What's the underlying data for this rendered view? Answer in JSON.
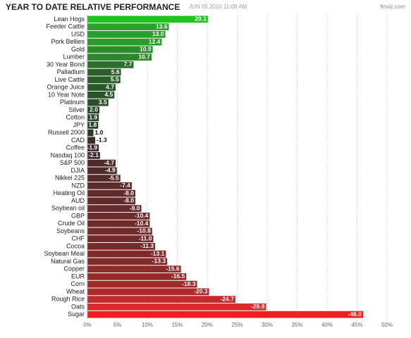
{
  "chart_data": {
    "type": "bar",
    "title": "YEAR TO DATE RELATIVE PERFORMANCE",
    "subtitle": "JUN 05 2010 11:08 AM",
    "source": "finviz.com",
    "categories": [
      "Lean Hogs",
      "Feeder Cattle",
      "USD",
      "Pork Bellies",
      "Gold",
      "Lumber",
      "30 Year Bond",
      "Palladium",
      "Live Cattle",
      "Orange Juice",
      "10 Year Note",
      "Platinum",
      "Silver",
      "Cotton",
      "JPY",
      "Russell 2000",
      "CAD",
      "Coffee",
      "Nasdaq 100",
      "S&P 500",
      "DJIA",
      "Nikkei 225",
      "NZD",
      "Heating Oil",
      "AUD",
      "Soybean oil",
      "GBP",
      "Crude Oil",
      "Soybeans",
      "CHF",
      "Cocoa",
      "Soybean Meal",
      "Natural Gas",
      "Copper",
      "EUR",
      "Corn",
      "Wheat",
      "Rough Rice",
      "Oats",
      "Sugar"
    ],
    "values": [
      20.1,
      13.6,
      13.0,
      12.4,
      10.9,
      10.7,
      7.7,
      5.6,
      5.5,
      4.7,
      4.5,
      3.5,
      2.0,
      1.9,
      1.8,
      1.0,
      -1.3,
      -1.9,
      -2.1,
      -4.7,
      -4.9,
      -5.5,
      -7.4,
      -8.0,
      -8.0,
      -9.0,
      -10.4,
      -10.4,
      -10.8,
      -11.0,
      -11.3,
      -13.1,
      -13.3,
      -15.6,
      -16.5,
      -18.3,
      -20.3,
      -24.7,
      -29.8,
      -46.0
    ],
    "value_labels": [
      "20.1",
      "13.6",
      "13.0",
      "12.4",
      "10.9",
      "10.7",
      "7.7",
      "5.6",
      "5.5",
      "4.7",
      "4.5",
      "3.5",
      "2.0",
      "1.9",
      "1.8",
      "1.0",
      "-1.3",
      "-1.9",
      "-2.1",
      "-4.7",
      "-4.9",
      "-5.5",
      "-7.4",
      "-8.0",
      "-8.0",
      "-9.0",
      "-10.4",
      "-10.4",
      "-10.8",
      "-11.0",
      "-11.3",
      "-13.1",
      "-13.3",
      "-15.6",
      "-16.5",
      "-18.3",
      "-20.3",
      "-24.7",
      "-29.8",
      "-46.0"
    ],
    "colors": [
      "#1fc41f",
      "#2aa32a",
      "#2a9f2a",
      "#2a9a2a",
      "#2a8c2a",
      "#2a8a2a",
      "#2a6e2a",
      "#2a5e2a",
      "#2a5d2a",
      "#2a572a",
      "#2a552a",
      "#2a4d2a",
      "#2a422a",
      "#2a412a",
      "#2a402a",
      "#2a3a2a",
      "#3a2a2a",
      "#3e2a2a",
      "#402a2a",
      "#4e2a2a",
      "#502a2a",
      "#542a2a",
      "#5e2a2a",
      "#622a2a",
      "#622a2a",
      "#682a2a",
      "#702a2a",
      "#702a2a",
      "#722a2a",
      "#742a2a",
      "#762a2a",
      "#802a2a",
      "#822a2a",
      "#902a2a",
      "#962a2a",
      "#a02a2a",
      "#ac2a2a",
      "#c42a2a",
      "#dc2a2a",
      "#f02020"
    ],
    "xlim": [
      0,
      50
    ],
    "xticks": [
      {
        "value": 0,
        "label": "0%"
      },
      {
        "value": 5,
        "label": "5%"
      },
      {
        "value": 10,
        "label": "10%"
      },
      {
        "value": 15,
        "label": "15%"
      },
      {
        "value": 20,
        "label": "20%"
      },
      {
        "value": 25,
        "label": "25%"
      },
      {
        "value": 30,
        "label": "30%"
      },
      {
        "value": 35,
        "label": "35%"
      },
      {
        "value": 40,
        "label": "40%"
      },
      {
        "value": 45,
        "label": "45%"
      },
      {
        "value": 50,
        "label": "50%"
      }
    ],
    "grid": true
  }
}
